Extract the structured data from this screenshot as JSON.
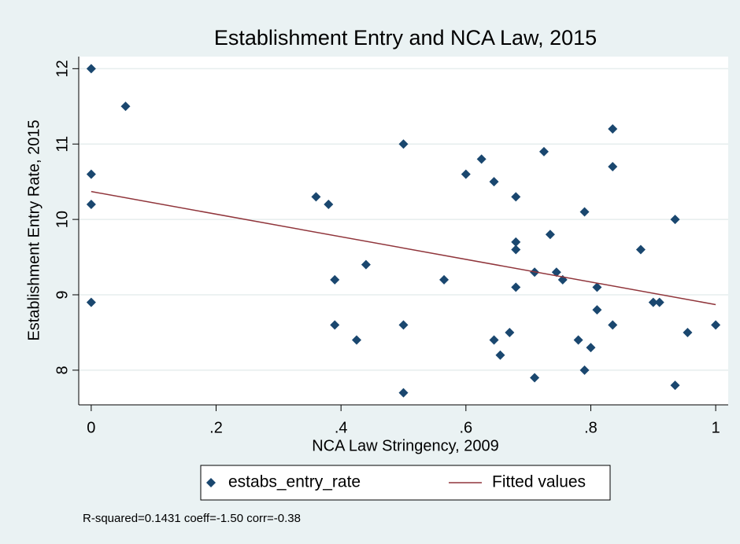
{
  "chart_data": {
    "type": "scatter",
    "title": "Establishment Entry and NCA Law, 2015",
    "x_label": "NCA Law Stringency, 2009",
    "y_label": "Establishment Entry Rate, 2015",
    "note": "R-squared=0.1431 coeff=-1.50 corr=-0.38",
    "xlim": [
      -0.02,
      1.02
    ],
    "ylim": [
      7.54,
      12.16
    ],
    "xticks": [
      0,
      {
        "value": 0.2,
        "label": ".2"
      },
      {
        "value": 0.4,
        "label": ".4"
      },
      {
        "value": 0.6,
        "label": ".6"
      },
      {
        "value": 0.8,
        "label": ".8"
      },
      1
    ],
    "yticks": [
      8,
      9,
      10,
      11,
      12
    ],
    "grid": true,
    "legend": "bottom",
    "series": [
      {
        "name": "estabs_entry_rate",
        "type": "scatter",
        "color": "#1a476f",
        "x": [
          0,
          0.055,
          0,
          0,
          0,
          0.36,
          0.38,
          0.39,
          0.39,
          0.425,
          0.44,
          0.5,
          0.5,
          0.5,
          0.565,
          0.6,
          0.625,
          0.645,
          0.645,
          0.655,
          0.67,
          0.68,
          0.68,
          0.68,
          0.68,
          0.71,
          0.71,
          0.725,
          0.735,
          0.745,
          0.755,
          0.78,
          0.79,
          0.79,
          0.8,
          0.81,
          0.81,
          0.835,
          0.835,
          0.835,
          0.88,
          0.9,
          0.91,
          0.935,
          0.935,
          0.955,
          1.0
        ],
        "values": [
          12.0,
          11.5,
          10.6,
          10.2,
          8.9,
          10.3,
          10.2,
          9.2,
          8.6,
          8.4,
          9.4,
          11.0,
          8.6,
          7.7,
          9.2,
          10.6,
          10.8,
          10.5,
          8.4,
          8.2,
          8.5,
          10.3,
          9.7,
          9.6,
          9.1,
          9.3,
          7.9,
          10.9,
          9.8,
          9.3,
          9.2,
          8.4,
          10.1,
          8.0,
          8.3,
          9.1,
          8.8,
          11.2,
          10.7,
          8.6,
          9.6,
          8.9,
          8.9,
          10.0,
          7.8,
          8.5,
          8.6
        ]
      },
      {
        "name": "Fitted values",
        "type": "line",
        "color": "#90353b",
        "x": [
          0,
          1
        ],
        "values": [
          10.37,
          8.87
        ]
      }
    ]
  }
}
